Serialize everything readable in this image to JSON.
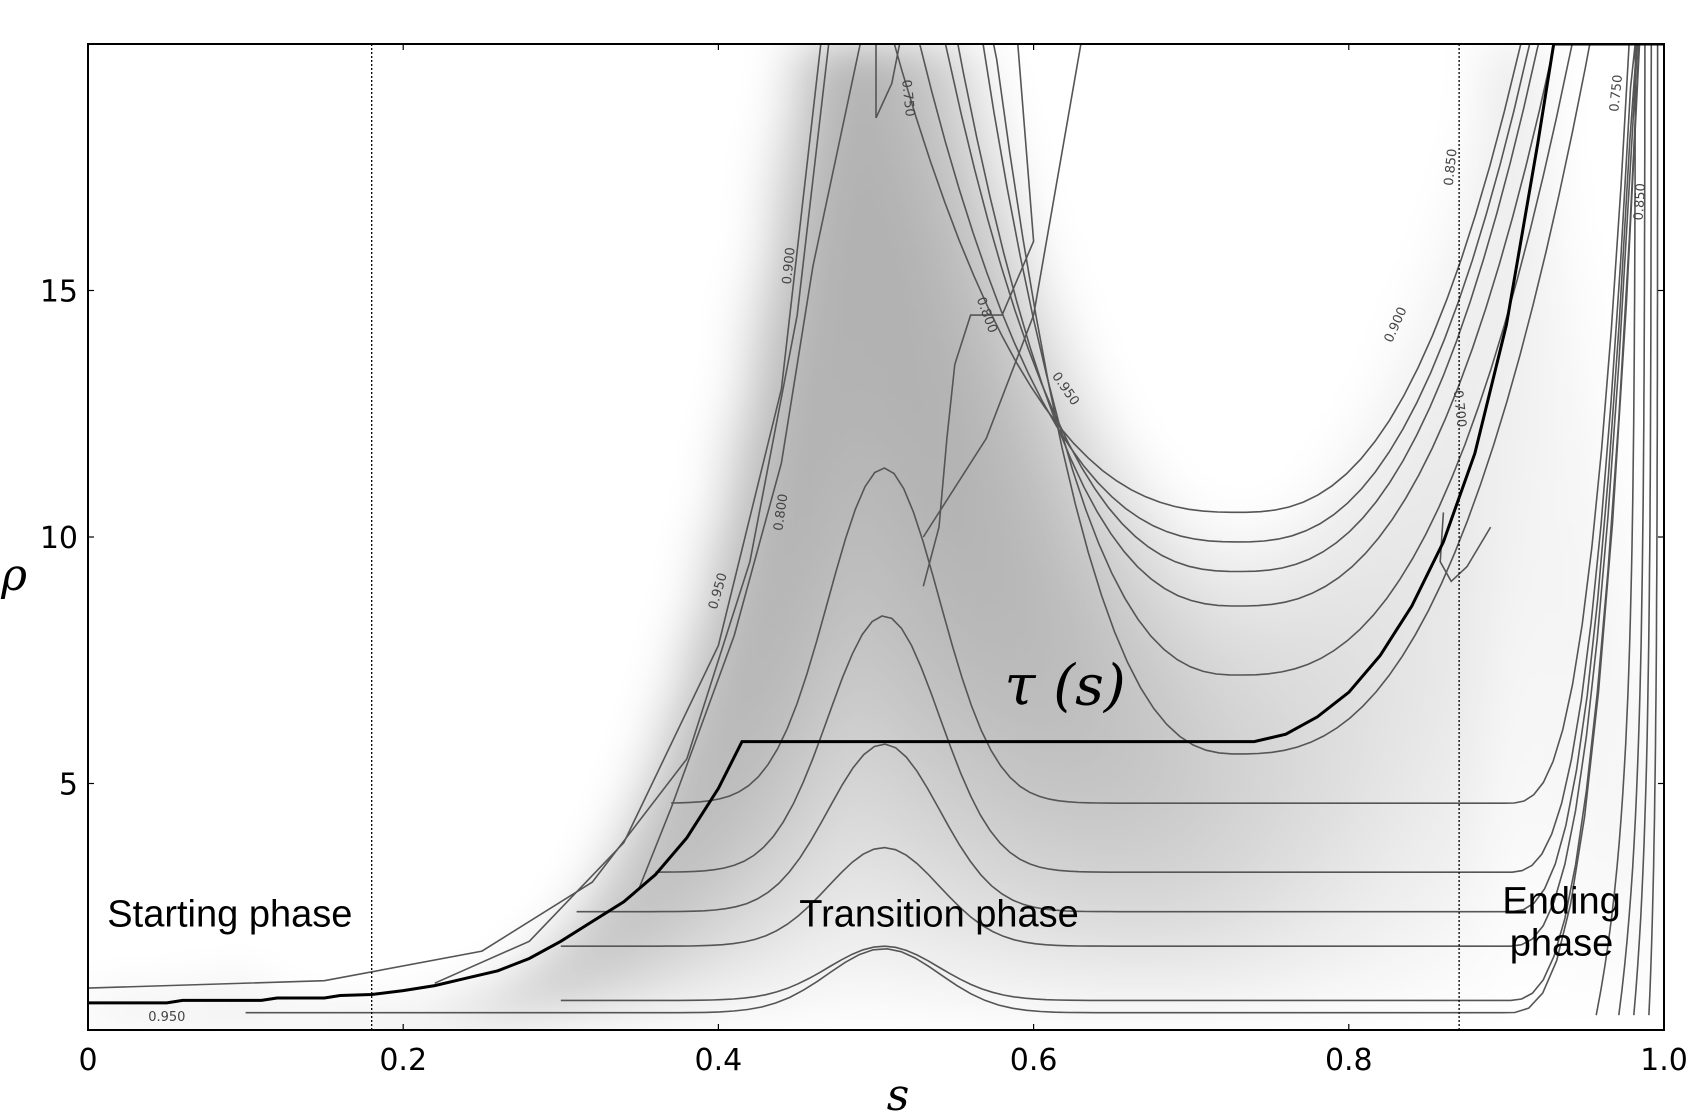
{
  "chart_data": {
    "type": "contour",
    "title": "",
    "xlabel": "s",
    "ylabel": "ρ",
    "xlim": [
      0,
      1.0
    ],
    "ylim": [
      0,
      20
    ],
    "x_ticks": [
      {
        "value": 0,
        "label": "0"
      },
      {
        "value": 0.2,
        "label": "0.2"
      },
      {
        "value": 0.4,
        "label": "0.4"
      },
      {
        "value": 0.6,
        "label": "0.6"
      },
      {
        "value": 0.8,
        "label": "0.8"
      },
      {
        "value": 1.0,
        "label": "1.0"
      }
    ],
    "y_ticks": [
      {
        "value": 5,
        "label": "5"
      },
      {
        "value": 10,
        "label": "10"
      },
      {
        "value": 15,
        "label": "15"
      }
    ],
    "phase_boundaries": [
      0.18,
      0.87
    ],
    "phase_labels": [
      {
        "text": "Starting phase",
        "x": 0.09,
        "y": 2.1
      },
      {
        "text": "Transition phase",
        "x": 0.54,
        "y": 2.1
      },
      {
        "text": "Ending phase",
        "x": 0.935,
        "y": 2.0,
        "lines": [
          "Ending",
          "phase"
        ]
      }
    ],
    "tau_curve": {
      "name": "τ (s)",
      "label_pos": {
        "x": 0.62,
        "y": 6.6
      },
      "points": [
        [
          0.0,
          0.55
        ],
        [
          0.05,
          0.55
        ],
        [
          0.06,
          0.6
        ],
        [
          0.11,
          0.6
        ],
        [
          0.12,
          0.65
        ],
        [
          0.15,
          0.65
        ],
        [
          0.16,
          0.7
        ],
        [
          0.18,
          0.72
        ],
        [
          0.2,
          0.8
        ],
        [
          0.22,
          0.9
        ],
        [
          0.24,
          1.05
        ],
        [
          0.26,
          1.2
        ],
        [
          0.28,
          1.45
        ],
        [
          0.3,
          1.8
        ],
        [
          0.32,
          2.2
        ],
        [
          0.34,
          2.6
        ],
        [
          0.36,
          3.15
        ],
        [
          0.38,
          3.9
        ],
        [
          0.4,
          4.9
        ],
        [
          0.415,
          5.85
        ],
        [
          0.74,
          5.85
        ],
        [
          0.76,
          6.0
        ],
        [
          0.78,
          6.35
        ],
        [
          0.8,
          6.85
        ],
        [
          0.82,
          7.6
        ],
        [
          0.84,
          8.6
        ],
        [
          0.86,
          9.9
        ],
        [
          0.88,
          11.7
        ],
        [
          0.9,
          14.3
        ],
        [
          0.92,
          18.0
        ],
        [
          0.93,
          20.0
        ],
        [
          1.0,
          20.0
        ]
      ]
    },
    "contour_levels": [
      {
        "level": 0.95,
        "label": "0.950"
      },
      {
        "level": 0.9,
        "label": "0.900"
      },
      {
        "level": 0.85,
        "label": "0.850"
      },
      {
        "level": 0.8,
        "label": "0.800"
      },
      {
        "level": 0.75,
        "label": "0.750"
      },
      {
        "level": 0.7,
        "label": "0.700"
      }
    ],
    "contour_labels": [
      {
        "text": "0.950",
        "x": 0.05,
        "y": 0.25,
        "angle": 0
      },
      {
        "text": "0.950",
        "x": 0.4,
        "y": 8.9,
        "angle": -74
      },
      {
        "text": "0.800",
        "x": 0.44,
        "y": 10.5,
        "angle": -82
      },
      {
        "text": "0.900",
        "x": 0.445,
        "y": 15.5,
        "angle": -84
      },
      {
        "text": "0.750",
        "x": 0.52,
        "y": 18.9,
        "angle": 84
      },
      {
        "text": "0.800",
        "x": 0.57,
        "y": 14.5,
        "angle": 70
      },
      {
        "text": "0.950",
        "x": 0.62,
        "y": 13.0,
        "angle": 55
      },
      {
        "text": "0.900",
        "x": 0.83,
        "y": 14.3,
        "angle": -66
      },
      {
        "text": "0.850",
        "x": 0.865,
        "y": 17.5,
        "angle": -84
      },
      {
        "text": "0.700",
        "x": 0.87,
        "y": 12.6,
        "angle": 84
      },
      {
        "text": "0.750",
        "x": 0.97,
        "y": 19.0,
        "angle": -84
      },
      {
        "text": "0.850",
        "x": 0.985,
        "y": 16.8,
        "angle": -86
      }
    ],
    "colorscale": {
      "high": "#ffffff",
      "low": "#a6a6a6"
    }
  }
}
